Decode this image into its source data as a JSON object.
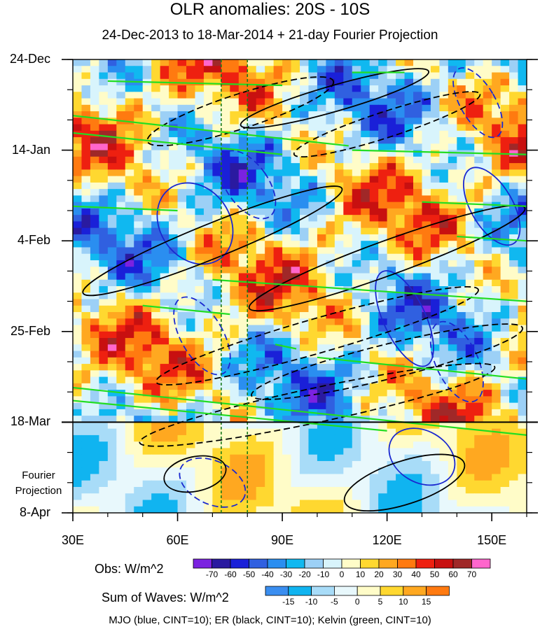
{
  "chart_data": {
    "type": "heatmap",
    "title": "OLR anomalies: 20S - 10S",
    "subtitle": "24-Dec-2013 to 18-Mar-2014 + 21-day Fourier Projection",
    "x_axis": {
      "range": [
        30,
        160
      ],
      "tick_values": [
        30,
        60,
        90,
        120,
        150
      ],
      "tick_labels": [
        "30E",
        "60E",
        "90E",
        "120E",
        "150E"
      ]
    },
    "y_axis": {
      "range_days": [
        0,
        105
      ],
      "tick_days": [
        0,
        21,
        42,
        63,
        84,
        105
      ],
      "tick_labels": [
        "24-Dec",
        "14-Jan",
        "4-Feb",
        "25-Feb",
        "18-Mar",
        "8-Apr"
      ]
    },
    "projection_start_day": 84,
    "projection_label": [
      "Fourier",
      "Projection"
    ],
    "reference_lines_lon": [
      72.5,
      80
    ],
    "obs_colorbar": {
      "title": "Obs: W/m^2",
      "levels": [
        -70,
        -60,
        -50,
        -40,
        -30,
        -20,
        -10,
        0,
        10,
        20,
        30,
        40,
        50,
        60,
        70
      ],
      "colors": [
        "#7b22e0",
        "#2a1aa0",
        "#1a20d8",
        "#3060e0",
        "#2a8ef0",
        "#10b8f0",
        "#9cd0f6",
        "#d8f4fc",
        "#fffcc8",
        "#ffd830",
        "#ffa820",
        "#ff7a10",
        "#ee2010",
        "#c81010",
        "#a02828",
        "#ff66cc"
      ]
    },
    "waves_colorbar": {
      "title": "Sum of Waves: W/m^2",
      "levels": [
        -15,
        -10,
        -5,
        0,
        5,
        10,
        15
      ],
      "colors": [
        "#3a8ef0",
        "#10b4f0",
        "#a8dcf8",
        "#e8f8fc",
        "#fffcc8",
        "#ffd830",
        "#ffa820",
        "#ff7a10"
      ]
    },
    "overlays": [
      {
        "wave": "MJO",
        "color": "blue",
        "cint": 10
      },
      {
        "wave": "ER",
        "color": "black",
        "cint": 10
      },
      {
        "wave": "Kelvin",
        "color": "green",
        "cint": 10
      }
    ],
    "footer": "MJO (blue, CINT=10); ER (black, CINT=10); Kelvin (green, CINT=10)"
  }
}
